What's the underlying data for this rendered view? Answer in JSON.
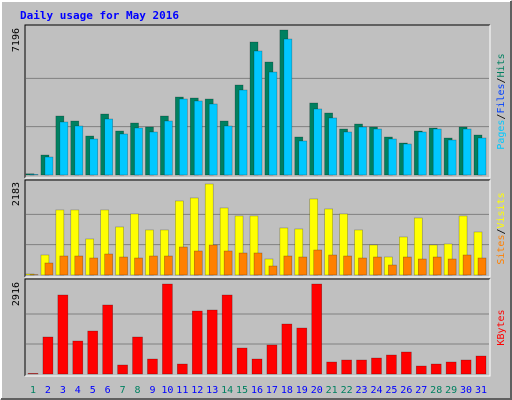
{
  "chart_data": [
    {
      "type": "bar",
      "title": "Daily usage for May 2016",
      "ylim": [
        0,
        7196
      ],
      "yticks": [
        7196
      ],
      "separator": "/",
      "series": [
        {
          "name": "Pages",
          "color": "#00c8ff",
          "values": [
            30,
            893,
            2630,
            2432,
            1787,
            2779,
            2035,
            2333,
            2134,
            2680,
            3772,
            3673,
            3524,
            2432,
            4218,
            6153,
            5110,
            6748,
            1688,
            3276,
            2830,
            2134,
            2382,
            2283,
            1787,
            1539,
            2134,
            2283,
            1737,
            2283,
            1836
          ]
        },
        {
          "name": "Files",
          "color": "#0040ff",
          "values": null
        },
        {
          "name": "Hits",
          "color": "#008060",
          "values": [
            60,
            992,
            2927,
            2679,
            1935,
            3026,
            2183,
            2580,
            2382,
            2927,
            3870,
            3821,
            3771,
            2679,
            4466,
            6600,
            5607,
            7196,
            1886,
            3573,
            3077,
            2283,
            2531,
            2382,
            1886,
            1588,
            2183,
            2332,
            1836,
            2382,
            1985
          ]
        }
      ]
    },
    {
      "type": "bar",
      "ylim": [
        0,
        2183
      ],
      "yticks": [
        2183
      ],
      "separator": "/",
      "series": [
        {
          "name": "Sites",
          "color": "#ff8000",
          "values": [
            10,
            288,
            456,
            456,
            408,
            504,
            432,
            408,
            456,
            456,
            672,
            576,
            720,
            576,
            528,
            528,
            216,
            456,
            432,
            600,
            480,
            456,
            408,
            432,
            240,
            432,
            384,
            432,
            384,
            480,
            408
          ]
        },
        {
          "name": "Visits",
          "color": "#ffff00",
          "values": [
            24,
            480,
            1560,
            1560,
            864,
            1560,
            1152,
            1464,
            1080,
            1080,
            1776,
            1848,
            2183,
            1608,
            1416,
            1416,
            384,
            1128,
            1104,
            1824,
            1584,
            1464,
            1080,
            720,
            432,
            912,
            1368,
            720,
            744,
            1416,
            1032
          ]
        }
      ]
    },
    {
      "type": "bar",
      "ylim": [
        0,
        2916
      ],
      "yticks": [
        2916
      ],
      "categories": [
        "1",
        "2",
        "3",
        "4",
        "5",
        "6",
        "7",
        "8",
        "9",
        "10",
        "11",
        "12",
        "13",
        "14",
        "15",
        "16",
        "17",
        "18",
        "19",
        "20",
        "21",
        "22",
        "23",
        "24",
        "25",
        "26",
        "27",
        "28",
        "29",
        "30",
        "31"
      ],
      "category_colors": [
        "#008060",
        "#0000ff",
        "#0000ff",
        "#0000ff",
        "#0000ff",
        "#0000ff",
        "#008060",
        "#008060",
        "#0000ff",
        "#0000ff",
        "#0000ff",
        "#0000ff",
        "#0000ff",
        "#008060",
        "#008060",
        "#0000ff",
        "#0000ff",
        "#0000ff",
        "#0000ff",
        "#0000ff",
        "#008060",
        "#008060",
        "#0000ff",
        "#0000ff",
        "#0000ff",
        "#0000ff",
        "#0000ff",
        "#008060",
        "#008060",
        "#0000ff",
        "#0000ff"
      ],
      "series": [
        {
          "name": "KBytes",
          "color": "#ff0000",
          "values": [
            20,
            1199,
            2560,
            1069,
            1393,
            2236,
            292,
            1199,
            486,
            2916,
            324,
            2041,
            2074,
            2560,
            842,
            486,
            940,
            1620,
            1490,
            2916,
            389,
            454,
            454,
            518,
            616,
            713,
            259,
            324,
            389,
            454,
            583
          ]
        }
      ]
    }
  ]
}
